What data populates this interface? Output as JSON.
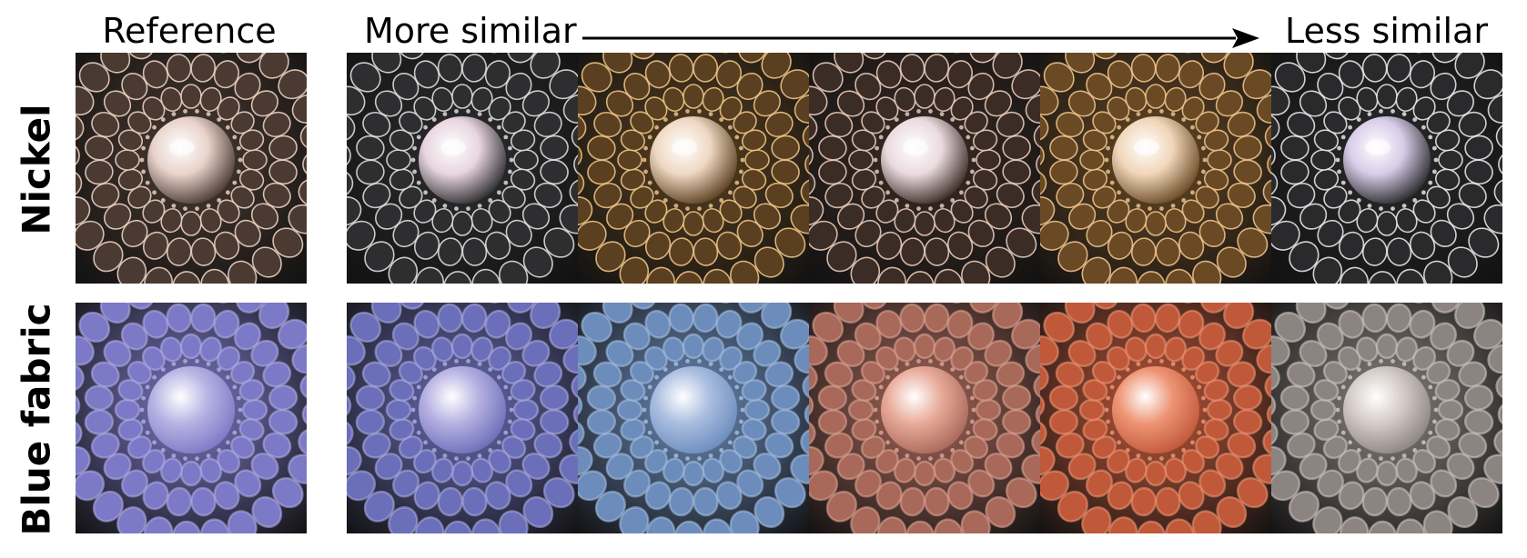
{
  "headers": {
    "reference": "Reference",
    "more_similar": "More similar",
    "less_similar": "Less similar"
  },
  "rows": [
    {
      "label": "Nickel",
      "material": "metallic",
      "tiles": [
        {
          "role": "reference",
          "base": "#4a3a32",
          "highlight": "#f0d8c8",
          "sphere": "#e9d3cb"
        },
        {
          "role": "candidate",
          "base": "#2e2e30",
          "highlight": "#e6e6e6",
          "sphere": "#e8d5df"
        },
        {
          "role": "candidate",
          "base": "#5a4020",
          "highlight": "#f2c98c",
          "sphere": "#efd8c2"
        },
        {
          "role": "candidate",
          "base": "#3c2c26",
          "highlight": "#eed2c2",
          "sphere": "#eadbe0"
        },
        {
          "role": "candidate",
          "base": "#6a4a24",
          "highlight": "#f3c890",
          "sphere": "#f1d6ba"
        },
        {
          "role": "candidate",
          "base": "#2a2a2c",
          "highlight": "#f0f0f0",
          "sphere": "#d8cce8"
        }
      ]
    },
    {
      "label": "Blue fabric",
      "material": "matte",
      "tiles": [
        {
          "role": "reference",
          "base": "#7c79c6",
          "highlight": "#b4b0e6",
          "sphere": "#b7b3e3"
        },
        {
          "role": "candidate",
          "base": "#6b6eb8",
          "highlight": "#aeb0e4",
          "sphere": "#b6b0e2"
        },
        {
          "role": "candidate",
          "base": "#6c8cbc",
          "highlight": "#a9c2e2",
          "sphere": "#a9bde0"
        },
        {
          "role": "candidate",
          "base": "#a8685a",
          "highlight": "#e0a898",
          "sphere": "#e8aa98"
        },
        {
          "role": "candidate",
          "base": "#c0583a",
          "highlight": "#ee9a78",
          "sphere": "#ee9474"
        },
        {
          "role": "candidate",
          "base": "#8c8480",
          "highlight": "#d2ccc8",
          "sphere": "#d4cbc6"
        }
      ]
    }
  ]
}
